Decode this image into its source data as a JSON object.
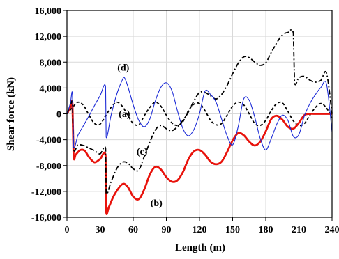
{
  "chart_data": {
    "type": "line",
    "title": "",
    "xlabel": "Length (m)",
    "ylabel": "Shear force (kN)",
    "xlim": [
      0,
      240
    ],
    "ylim": [
      -16000,
      16000
    ],
    "xticks": [
      0,
      30,
      60,
      90,
      120,
      150,
      180,
      210,
      240
    ],
    "xtick_labels": [
      "0",
      "30",
      "60",
      "90",
      "120",
      "150",
      "180",
      "210",
      "240"
    ],
    "yticks": [
      -16000,
      -12000,
      -8000,
      -4000,
      0,
      4000,
      8000,
      12000,
      16000
    ],
    "ytick_labels": [
      "-16,000",
      "-12,000",
      "-8,000",
      "-4,000",
      "0",
      "4,000",
      "8,000",
      "12,000",
      "16,000"
    ],
    "grid": true,
    "series": [
      {
        "name": "(a)",
        "color": "#000000",
        "style": "dashed",
        "x": [
          0,
          5,
          10,
          15,
          20,
          25,
          30,
          35,
          40,
          45,
          50,
          55,
          60,
          65,
          70,
          75,
          80,
          85,
          90,
          95,
          100,
          105,
          110,
          115,
          120,
          125,
          130,
          135,
          140,
          145,
          150,
          155,
          160,
          165,
          170,
          175,
          180,
          185,
          190,
          195,
          200,
          205,
          210,
          215,
          220,
          225,
          230,
          235,
          240
        ],
        "y": [
          0,
          1000,
          1800,
          1300,
          -200,
          -1500,
          -1600,
          -300,
          1000,
          1800,
          1200,
          -200,
          -1500,
          -1700,
          -300,
          1000,
          1800,
          1200,
          -200,
          -1400,
          -1800,
          -1200,
          500,
          1500,
          1600,
          500,
          -1000,
          -1700,
          -1500,
          -200,
          1200,
          1800,
          1400,
          0,
          -1500,
          -1800,
          -1000,
          500,
          1600,
          1700,
          400,
          -1100,
          -1800,
          -1500,
          -200,
          1000,
          1600,
          900,
          -600
        ]
      },
      {
        "name": "(b)",
        "color": "#e8130c",
        "style": "solid",
        "x": [
          0,
          3,
          5,
          6,
          8,
          12,
          16,
          20,
          25,
          30,
          35,
          35.5,
          38,
          43,
          50,
          55,
          60,
          65,
          70,
          75,
          80,
          85,
          90,
          95,
          100,
          105,
          110,
          115,
          120,
          125,
          130,
          135,
          140,
          145,
          150,
          155,
          160,
          165,
          170,
          175,
          180,
          185,
          190,
          195,
          200,
          205,
          210,
          215,
          220,
          225,
          230,
          235,
          240
        ],
        "y": [
          0,
          1000,
          1500,
          -6500,
          -6300,
          -5600,
          -5700,
          -6700,
          -7500,
          -7000,
          -6500,
          -15000,
          -14400,
          -12500,
          -10900,
          -11300,
          -12800,
          -13200,
          -11700,
          -9400,
          -8200,
          -8600,
          -9800,
          -10500,
          -10300,
          -9000,
          -7000,
          -5800,
          -5600,
          -6300,
          -7400,
          -7800,
          -7400,
          -5900,
          -4100,
          -3000,
          -3300,
          -4300,
          -4900,
          -4300,
          -2700,
          -800,
          -300,
          -900,
          -2000,
          -2300,
          -1400,
          -200,
          0,
          0,
          0,
          0,
          0
        ]
      },
      {
        "name": "(c)",
        "color": "#000000",
        "style": "dashdot",
        "x": [
          0,
          3,
          5,
          6,
          10,
          15,
          20,
          25,
          30,
          35,
          35.5,
          40,
          45,
          50,
          55,
          60,
          65,
          70,
          75,
          80,
          85,
          90,
          95,
          100,
          105,
          110,
          115,
          120,
          125,
          130,
          135,
          140,
          145,
          150,
          155,
          160,
          165,
          170,
          175,
          180,
          185,
          190,
          195,
          200,
          205,
          206,
          210,
          215,
          220,
          225,
          230,
          235,
          240
        ],
        "y": [
          0,
          1200,
          1500,
          -5400,
          -4800,
          -4900,
          -5300,
          -5700,
          -6200,
          -5400,
          -12200,
          -10500,
          -8500,
          -7500,
          -7600,
          -8500,
          -8700,
          -6600,
          -4400,
          -2500,
          -1800,
          -2300,
          -2600,
          -2000,
          -1000,
          300,
          2000,
          3300,
          3300,
          2800,
          2300,
          3000,
          4400,
          6200,
          7800,
          8800,
          8700,
          8000,
          7500,
          7900,
          9500,
          11000,
          12200,
          12600,
          12400,
          4900,
          5600,
          5800,
          5200,
          4900,
          5200,
          6300,
          0
        ]
      },
      {
        "name": "(d)",
        "color": "#1c2bd6",
        "style": "solid",
        "x": [
          0,
          3,
          5,
          6,
          10,
          15,
          20,
          25,
          30,
          35,
          35.5,
          40,
          45,
          50,
          52,
          55,
          60,
          65,
          70,
          75,
          80,
          85,
          90,
          95,
          100,
          105,
          110,
          115,
          120,
          125,
          130,
          135,
          140,
          145,
          150,
          155,
          160,
          165,
          170,
          175,
          180,
          185,
          190,
          195,
          200,
          205,
          210,
          215,
          220,
          225,
          230,
          235,
          240
        ],
        "y": [
          0,
          1600,
          3100,
          -5000,
          -3300,
          -1800,
          -300,
          1300,
          2800,
          4200,
          -3600,
          -200,
          3000,
          5200,
          5600,
          4300,
          1400,
          -1000,
          -2000,
          -800,
          2000,
          4100,
          4800,
          3600,
          500,
          -2300,
          -3400,
          -2400,
          0,
          3500,
          3000,
          1800,
          -800,
          -3400,
          -4800,
          -2000,
          2300,
          2100,
          -500,
          -3800,
          -5600,
          -3800,
          -1600,
          -200,
          -1000,
          -3500,
          -3200,
          -300,
          1600,
          3000,
          4100,
          4600,
          -2800
        ]
      }
    ],
    "annotations": [
      {
        "series": "(a)",
        "label": "(a)",
        "x": 52,
        "y": -500
      },
      {
        "series": "(b)",
        "label": "(b)",
        "x": 81,
        "y": -14300
      },
      {
        "series": "(c)",
        "label": "(c)",
        "x": 68,
        "y": -6300
      },
      {
        "series": "(d)",
        "label": "(d)",
        "x": 51,
        "y": 6700
      }
    ]
  }
}
